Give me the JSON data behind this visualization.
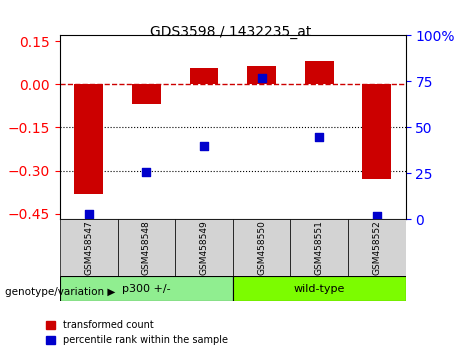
{
  "title": "GDS3598 / 1432235_at",
  "samples": [
    "GSM458547",
    "GSM458548",
    "GSM458549",
    "GSM458550",
    "GSM458551",
    "GSM458552"
  ],
  "bar_values": [
    -0.38,
    -0.07,
    0.055,
    0.065,
    0.08,
    -0.33
  ],
  "scatter_values": [
    3,
    26,
    40,
    77,
    45,
    2
  ],
  "groups": [
    {
      "label": "p300 +/-",
      "samples": [
        0,
        1,
        2
      ],
      "color": "#90EE90"
    },
    {
      "label": "wild-type",
      "samples": [
        3,
        4,
        5
      ],
      "color": "#7CFC00"
    }
  ],
  "bar_color": "#CC0000",
  "scatter_color": "#0000CC",
  "ylim_left": [
    -0.47,
    0.17
  ],
  "ylim_right": [
    0,
    100
  ],
  "yticks_left": [
    -0.45,
    -0.3,
    -0.15,
    0,
    0.15
  ],
  "yticks_right": [
    0,
    25,
    50,
    75,
    100
  ],
  "hline_y": 0,
  "dotted_lines": [
    -0.15,
    -0.3
  ],
  "background_color": "#ffffff",
  "plot_bg_color": "#ffffff",
  "legend_items": [
    "transformed count",
    "percentile rank within the sample"
  ],
  "group_label": "genotype/variation"
}
